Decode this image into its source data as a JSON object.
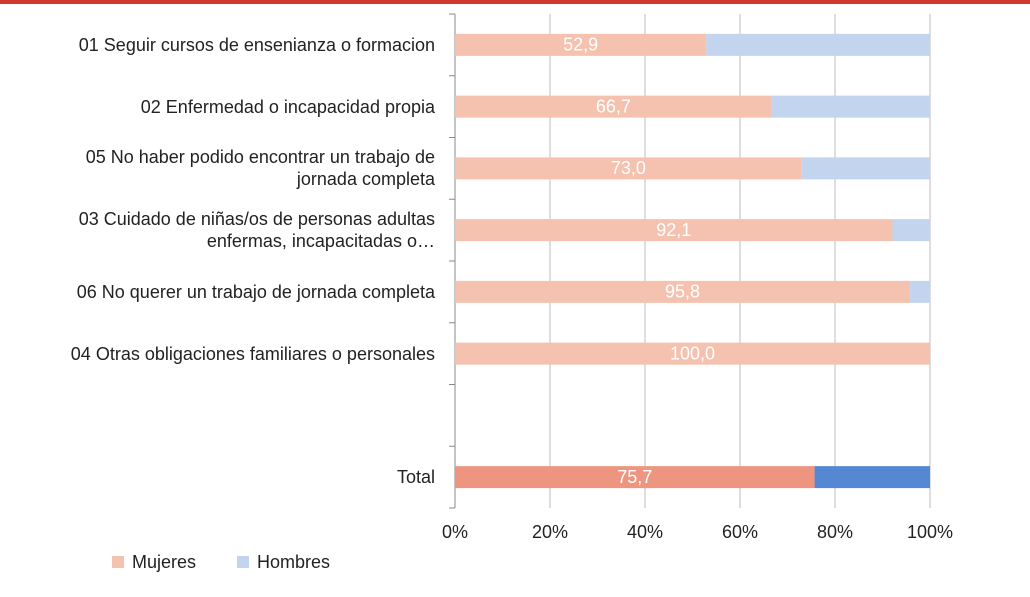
{
  "chart_data": {
    "type": "stacked_barh",
    "categories": [
      "01 Seguir cursos de ensenianza o formacion",
      "02 Enfermedad o incapacidad propia",
      "05 No haber podido encontrar un trabajo de jornada completa",
      "03 Cuidado de niñas/os de personas adultas enfermas, incapacitadas o…",
      "06 No querer un trabajo de jornada completa",
      "04 Otras obligaciones familiares o personales",
      null,
      "Total"
    ],
    "series": [
      {
        "name": "Mujeres",
        "color": "#f4c2ae",
        "point_colors": [
          null,
          null,
          null,
          null,
          null,
          null,
          null,
          "#ee9580"
        ],
        "values": [
          52.9,
          66.7,
          73.0,
          92.1,
          95.8,
          100.0,
          null,
          75.7
        ],
        "value_labels": [
          "52,9",
          "66,7",
          "73,0",
          "92,1",
          "95,8",
          "100,0",
          null,
          "75,7"
        ]
      },
      {
        "name": "Hombres",
        "color": "#c3d5ee",
        "point_colors": [
          null,
          null,
          null,
          null,
          null,
          null,
          null,
          "#5488d2"
        ],
        "values": [
          47.1,
          33.3,
          27.0,
          7.9,
          4.2,
          0.0,
          null,
          24.3
        ]
      }
    ],
    "xlim": [
      0,
      100
    ],
    "xticks": [
      {
        "value": 0,
        "label": "0%"
      },
      {
        "value": 20,
        "label": "20%"
      },
      {
        "value": 40,
        "label": "40%"
      },
      {
        "value": 60,
        "label": "60%"
      },
      {
        "value": 80,
        "label": "80%"
      },
      {
        "value": 100,
        "label": "100%"
      }
    ],
    "grid": true,
    "legend": "bottom-left"
  }
}
